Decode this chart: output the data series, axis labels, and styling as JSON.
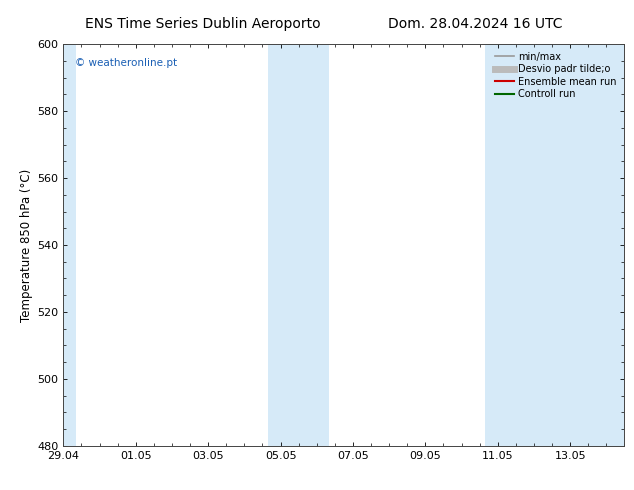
{
  "title_left": "ENS Time Series Dublin Aeroporto",
  "title_right": "Dom. 28.04.2024 16 UTC",
  "ylabel": "Temperature 850 hPa (°C)",
  "watermark": "© weatheronline.pt",
  "ylim": [
    480,
    600
  ],
  "yticks": [
    480,
    500,
    520,
    540,
    560,
    580,
    600
  ],
  "xlim_start": 0.0,
  "xlim_end": 15.5,
  "xtick_labels": [
    "29.04",
    "01.05",
    "03.05",
    "05.05",
    "07.05",
    "09.05",
    "11.05",
    "13.05"
  ],
  "xtick_positions": [
    0.0,
    2.0,
    4.0,
    6.0,
    8.0,
    10.0,
    12.0,
    14.0
  ],
  "shaded_bands": [
    {
      "x_start": -0.1,
      "x_end": 0.35
    },
    {
      "x_start": 5.65,
      "x_end": 7.35
    },
    {
      "x_start": 11.65,
      "x_end": 15.6
    }
  ],
  "shade_color": "#d6eaf8",
  "background_color": "#ffffff",
  "legend_entries": [
    {
      "label": "min/max",
      "color": "#999999",
      "lw": 1.2,
      "style": "-"
    },
    {
      "label": "Desvio padr tilde;o",
      "color": "#bbbbbb",
      "lw": 5,
      "style": "-"
    },
    {
      "label": "Ensemble mean run",
      "color": "#cc0000",
      "lw": 1.5,
      "style": "-"
    },
    {
      "label": "Controll run",
      "color": "#006600",
      "lw": 1.5,
      "style": "-"
    }
  ],
  "title_fontsize": 10,
  "axis_label_fontsize": 8.5,
  "tick_fontsize": 8,
  "watermark_color": "#1a5fb4",
  "spine_color": "#444444"
}
